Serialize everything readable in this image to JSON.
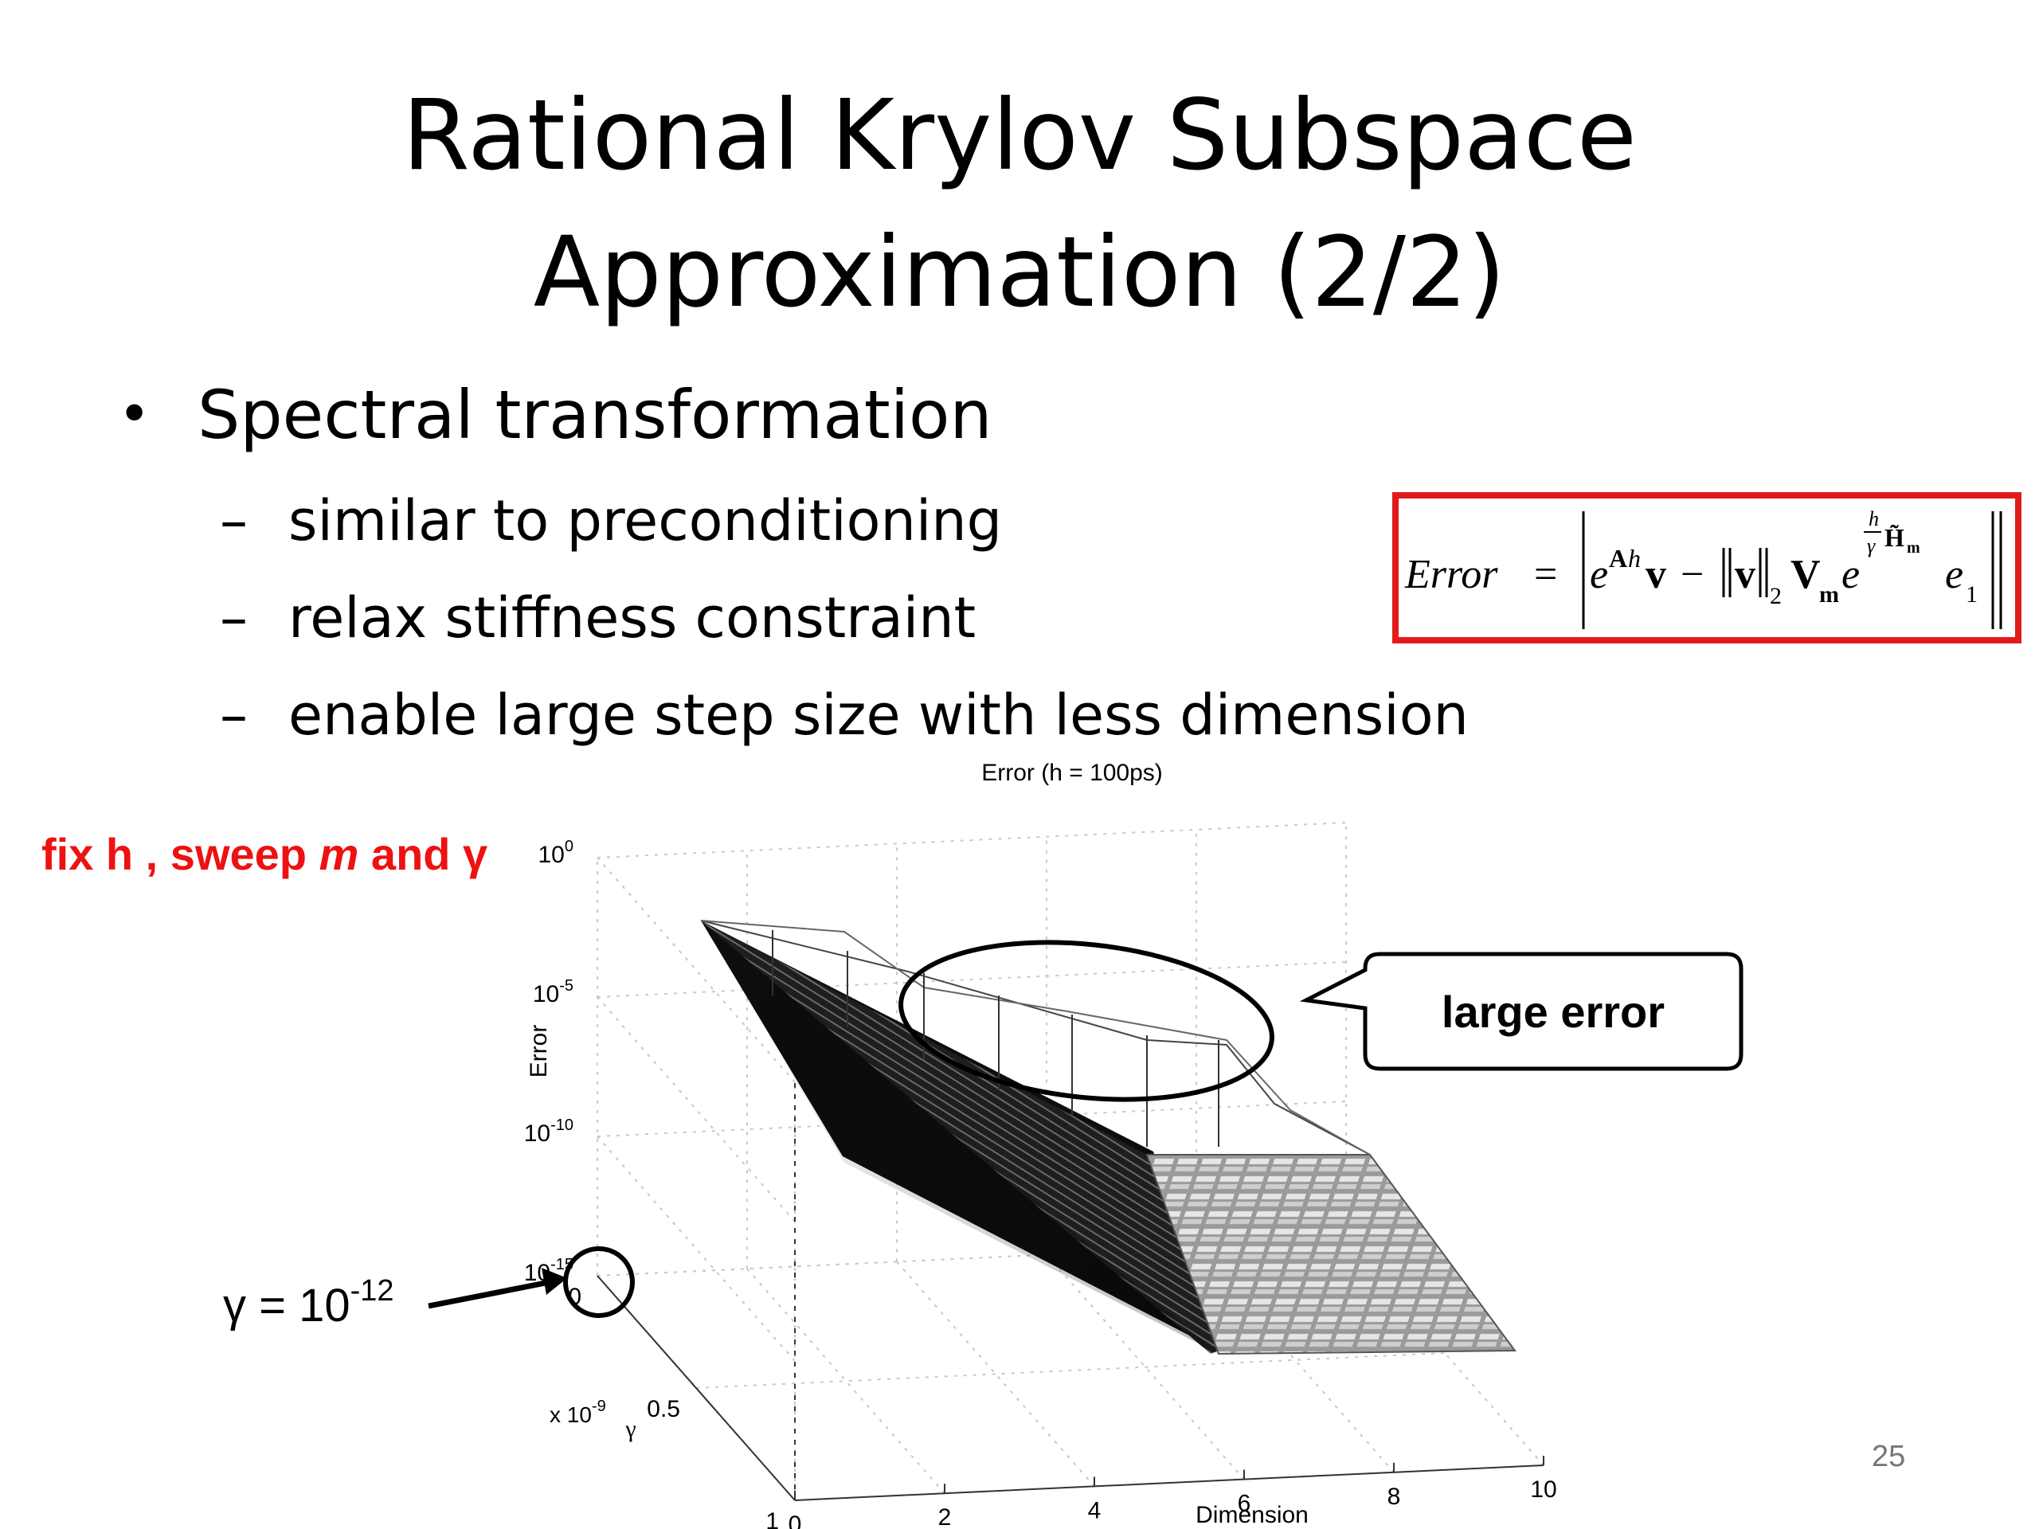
{
  "slide": {
    "title_line1": "Rational Krylov Subspace",
    "title_line2": "Approximation (2/2)",
    "bullet": "Spectral transformation",
    "sub_bullets": [
      "similar to preconditioning",
      "relax stiffness constraint",
      "enable large step size with less dimension"
    ],
    "bullet_symbol": "•",
    "dash_symbol": "–",
    "page_number": "25"
  },
  "formula": {
    "lhs": "Error",
    "equals": "=",
    "exp_base": "e",
    "exp_A": "A",
    "exp_h": "h",
    "v": "v",
    "minus": "−",
    "norm_v": "v",
    "norm_sub": "2",
    "V": "V",
    "V_sub": "m",
    "e2": "e",
    "frac_num": "h",
    "frac_den": "γ",
    "H": "H̃",
    "H_sub": "m",
    "e1": "e",
    "e1_sub": "1"
  },
  "annotations": {
    "red_note": {
      "part1": "fix h , sweep ",
      "m": "m",
      "part2": " and γ"
    },
    "gamma_label": {
      "base": "γ = 10",
      "exp": "-12"
    },
    "callout": "large error",
    "colors": {
      "red": "#e11b1b",
      "note_red": "#ee1111"
    }
  },
  "chart_data": {
    "type": "surface3d",
    "title": "Error (h = 100ps)",
    "zlabel": "Error",
    "xlabel": "Dimension",
    "ylabel": "γ",
    "y_multiplier": "x 10",
    "y_multiplier_exp": "-9",
    "z_scale": "log",
    "z_ticks": [
      {
        "base": "10",
        "exp": "0"
      },
      {
        "base": "10",
        "exp": "-5"
      },
      {
        "base": "10",
        "exp": "-10"
      },
      {
        "base": "10",
        "exp": "-15"
      }
    ],
    "x_ticks": [
      "0",
      "2",
      "4",
      "6",
      "8",
      "10"
    ],
    "y_ticks": [
      "0",
      "0.5",
      "1"
    ],
    "xlim": [
      0,
      10
    ],
    "ylim": [
      0,
      1
    ],
    "zlim_exp": [
      -15,
      0
    ],
    "grid": true
  }
}
